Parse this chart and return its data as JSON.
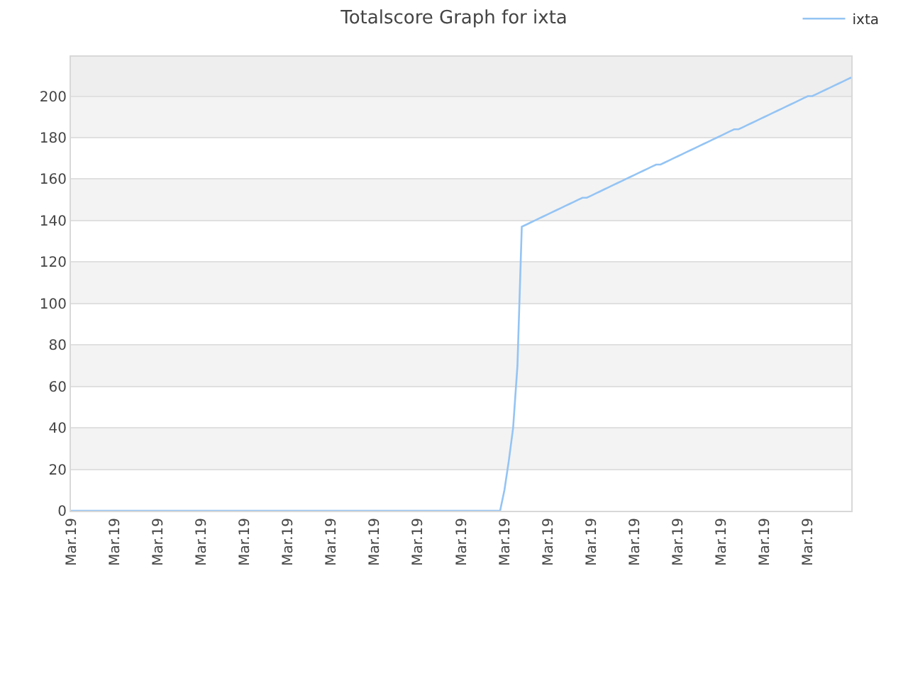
{
  "chart_data": {
    "type": "line",
    "title": "Totalscore Graph for ixta",
    "categories": [
      "Mar.19",
      null,
      null,
      null,
      null,
      null,
      null,
      null,
      null,
      null,
      "Mar.19",
      null,
      null,
      null,
      null,
      null,
      null,
      null,
      null,
      null,
      "Mar.19",
      null,
      null,
      null,
      null,
      null,
      null,
      null,
      null,
      null,
      "Mar.19",
      null,
      null,
      null,
      null,
      null,
      null,
      null,
      null,
      null,
      "Mar.19",
      null,
      null,
      null,
      null,
      null,
      null,
      null,
      null,
      null,
      "Mar.19",
      null,
      null,
      null,
      null,
      null,
      null,
      null,
      null,
      null,
      "Mar.19",
      null,
      null,
      null,
      null,
      null,
      null,
      null,
      null,
      null,
      "Mar.19",
      null,
      null,
      null,
      null,
      null,
      null,
      null,
      null,
      null,
      "Mar.19",
      null,
      null,
      null,
      null,
      null,
      null,
      null,
      null,
      null,
      "Mar.19",
      null,
      null,
      null,
      null,
      null,
      null,
      null,
      null,
      null,
      "Mar.19",
      null,
      null,
      null,
      null,
      null,
      null,
      null,
      null,
      null,
      "Mar.19",
      null,
      null,
      null,
      null,
      null,
      null,
      null,
      null,
      null,
      "Mar.19",
      null,
      null,
      null,
      null,
      null,
      null,
      null,
      null,
      null,
      "Mar.19",
      null,
      null,
      null,
      null,
      null,
      null,
      null,
      null,
      null,
      "Mar.19",
      null,
      null,
      null,
      null,
      null,
      null,
      null,
      null,
      null,
      "Mar.19",
      null,
      null,
      null,
      null,
      null,
      null,
      null,
      null,
      null,
      "Mar.19",
      null,
      null,
      null,
      null,
      null,
      null,
      null,
      null,
      null,
      "Mar.19",
      null,
      null,
      null,
      null,
      null,
      null,
      null,
      null,
      null,
      null
    ],
    "series": [
      {
        "name": "ixta",
        "color": "#94c4f4",
        "values": [
          0,
          0,
          0,
          0,
          0,
          0,
          0,
          0,
          0,
          0,
          0,
          0,
          0,
          0,
          0,
          0,
          0,
          0,
          0,
          0,
          0,
          0,
          0,
          0,
          0,
          0,
          0,
          0,
          0,
          0,
          0,
          0,
          0,
          0,
          0,
          0,
          0,
          0,
          0,
          0,
          0,
          0,
          0,
          0,
          0,
          0,
          0,
          0,
          0,
          0,
          0,
          0,
          0,
          0,
          0,
          0,
          0,
          0,
          0,
          0,
          0,
          0,
          0,
          0,
          0,
          0,
          0,
          0,
          0,
          0,
          0,
          0,
          0,
          0,
          0,
          0,
          0,
          0,
          0,
          0,
          0,
          0,
          0,
          0,
          0,
          0,
          0,
          0,
          0,
          0,
          0,
          0,
          0,
          0,
          0,
          0,
          0,
          0,
          0,
          0,
          10,
          24,
          40,
          70,
          137,
          138,
          139,
          140,
          141,
          142,
          143,
          144,
          145,
          146,
          147,
          148,
          149,
          150,
          151,
          151,
          152,
          153,
          154,
          155,
          156,
          157,
          158,
          159,
          160,
          161,
          162,
          163,
          164,
          165,
          166,
          167,
          167,
          168,
          169,
          170,
          171,
          172,
          173,
          174,
          175,
          176,
          177,
          178,
          179,
          180,
          181,
          182,
          183,
          184,
          184,
          185,
          186,
          187,
          188,
          189,
          190,
          191,
          192,
          193,
          194,
          195,
          196,
          197,
          198,
          199,
          200,
          200,
          201,
          202,
          203,
          204,
          205,
          206,
          207,
          208,
          209
        ]
      }
    ],
    "ylim": [
      0,
      219
    ],
    "yticks": [
      0,
      20,
      40,
      60,
      80,
      100,
      120,
      140,
      160,
      180,
      200
    ],
    "bands": [
      {
        "axis": "y",
        "from": 20,
        "to": 40,
        "color": "#f3f3f3"
      },
      {
        "axis": "y",
        "from": 60,
        "to": 80,
        "color": "#f3f3f3"
      },
      {
        "axis": "y",
        "from": 100,
        "to": 120,
        "color": "#f3f3f3"
      },
      {
        "axis": "y",
        "from": 140,
        "to": 160,
        "color": "#f3f3f3"
      },
      {
        "axis": "y",
        "from": 180,
        "to": 200,
        "color": "#f3f3f3"
      },
      {
        "axis": "y",
        "from": 200,
        "to": 219,
        "color": "#eeeeee"
      }
    ],
    "grid": "y",
    "legend": "top right",
    "line_style": "solid"
  }
}
